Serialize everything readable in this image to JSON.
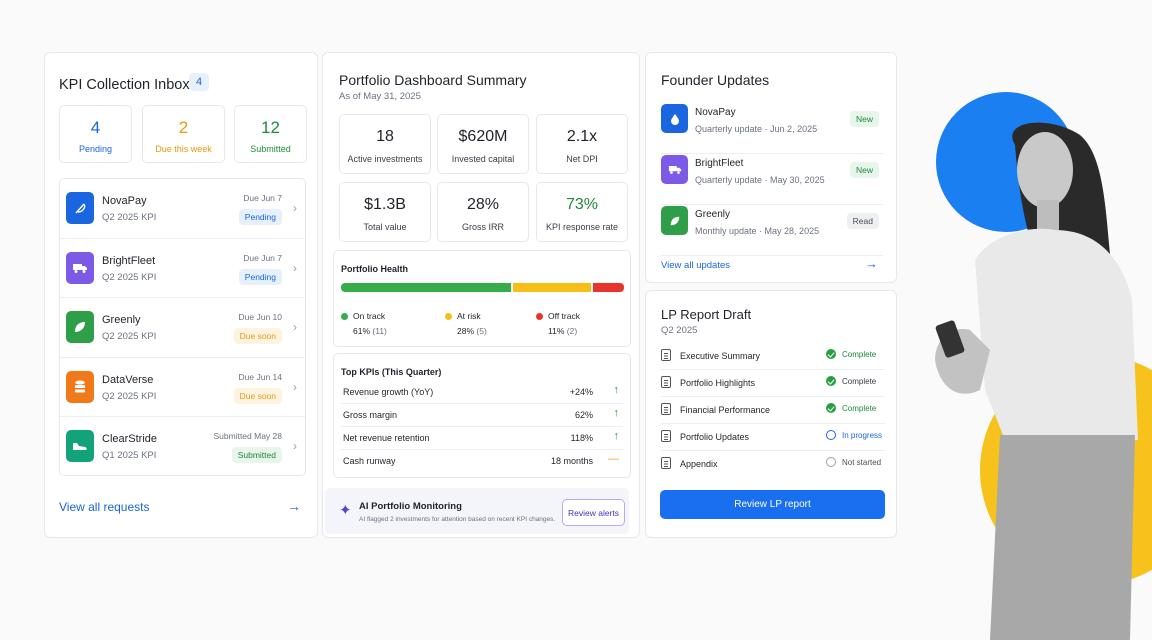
{
  "inbox": {
    "title": "KPI Collection Inbox",
    "count": "4",
    "stats": [
      {
        "num": "4",
        "label": "Pending",
        "color": "#1a66e0"
      },
      {
        "num": "2",
        "label": "Due this week",
        "color": "#e69a10"
      },
      {
        "num": "12",
        "label": "Submitted",
        "color": "#1f8a3a"
      }
    ],
    "items": [
      {
        "name": "NovaPay",
        "sub": "Q2 2025 KPI",
        "date": "Due Jun 7",
        "status": "Pending",
        "icon": "leaf-feather-icon",
        "color": "#1a66e0"
      },
      {
        "name": "BrightFleet",
        "sub": "Q2 2025 KPI",
        "date": "Due Jun 7",
        "status": "Pending",
        "icon": "truck-icon",
        "color": "#7c5ae6"
      },
      {
        "name": "Greenly",
        "sub": "Q2 2025 KPI",
        "date": "Due Jun 10",
        "status": "Due soon",
        "icon": "leaf-icon",
        "color": "#2e9e48"
      },
      {
        "name": "DataVerse",
        "sub": "Q2 2025 KPI",
        "date": "Due Jun 14",
        "status": "Due soon",
        "icon": "database-icon",
        "color": "#f07a1a"
      },
      {
        "name": "ClearStride",
        "sub": "Q1 2025 KPI",
        "date": "Submitted May 28",
        "status": "Submitted",
        "icon": "shoe-icon",
        "color": "#12a37a"
      }
    ],
    "view_all": "View all requests"
  },
  "summary": {
    "title": "Portfolio Dashboard Summary",
    "as_of": "As of May 31, 2025",
    "metrics": [
      {
        "value": "18",
        "label": "Active investments"
      },
      {
        "value": "$620M",
        "label": "Invested capital"
      },
      {
        "value": "2.1x",
        "label": "Net DPI"
      },
      {
        "value": "$1.3B",
        "label": "Total value"
      },
      {
        "value": "28%",
        "label": "Gross IRR"
      },
      {
        "value": "73%",
        "label": "KPI response rate"
      }
    ],
    "health": {
      "title": "Portfolio Health",
      "segments": [
        {
          "label": "On track",
          "pct": "61%",
          "count": "(11)",
          "color": "#37ad4a",
          "frac": 0.61
        },
        {
          "label": "At risk",
          "pct": "28%",
          "count": "(5)",
          "color": "#f5bf18",
          "frac": 0.28
        },
        {
          "label": "Off track",
          "pct": "11%",
          "count": "(2)",
          "color": "#e8342a",
          "frac": 0.11
        }
      ]
    },
    "kpis": {
      "title": "Top KPIs (This Quarter)",
      "rows": [
        {
          "name": "Revenue growth (YoY)",
          "value": "+24%",
          "trend": "↑"
        },
        {
          "name": "Gross margin",
          "value": "62%",
          "trend": "↑"
        },
        {
          "name": "Net revenue retention",
          "value": "118%",
          "trend": "↑"
        },
        {
          "name": "Cash runway",
          "value": "18 months",
          "trend": "—"
        }
      ]
    },
    "ai": {
      "title": "AI Portfolio Monitoring",
      "text": "AI flagged 2 investments for attention based on recent KPI changes.",
      "button": "Review alerts"
    }
  },
  "founder": {
    "title": "Founder Updates",
    "items": [
      {
        "name": "NovaPay",
        "type": "Quarterly update",
        "date": "Jun 2, 2025",
        "status": "New",
        "color": "#1a66e0"
      },
      {
        "name": "BrightFleet",
        "type": "Quarterly update",
        "date": "May 30, 2025",
        "status": "New",
        "color": "#7c5ae6"
      },
      {
        "name": "Greenly",
        "type": "Monthly update",
        "date": "May 28, 2025",
        "status": "Read",
        "color": "#2e9e48"
      }
    ],
    "view_all": "View all updates"
  },
  "lp": {
    "title": "LP Report Draft",
    "quarter": "Q2 2025",
    "sections": [
      {
        "name": "Executive Summary",
        "status": "Complete",
        "state": "done"
      },
      {
        "name": "Portfolio Highlights",
        "status": "Complete",
        "state": "done"
      },
      {
        "name": "Financial Performance",
        "status": "Complete",
        "state": "done"
      },
      {
        "name": "Portfolio Updates",
        "status": "In progress",
        "state": "prog"
      },
      {
        "name": "Appendix",
        "status": "Not started",
        "state": "none"
      }
    ],
    "button": "Review LP report"
  }
}
